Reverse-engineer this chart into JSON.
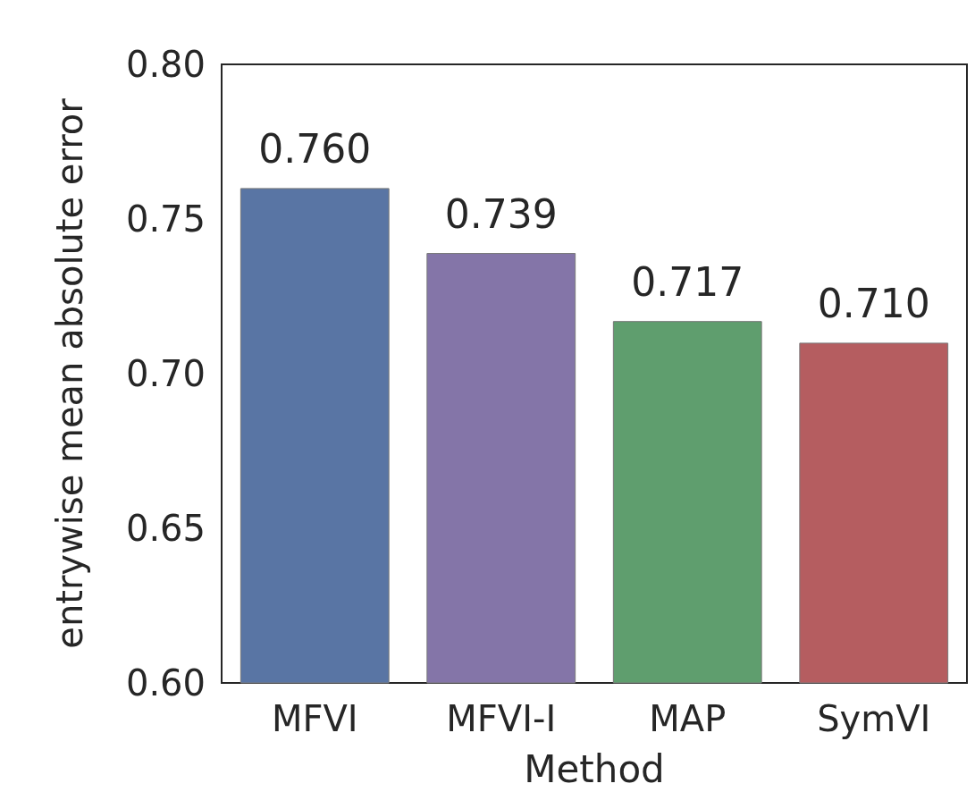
{
  "chart_data": {
    "type": "bar",
    "xlabel": "Method",
    "ylabel": "entrywise mean absolute error",
    "categories": [
      "MFVI",
      "MFVI-I",
      "MAP",
      "SymVI"
    ],
    "values": [
      0.76,
      0.739,
      0.717,
      0.71
    ],
    "colors": [
      "#5975a4",
      "#8475a8",
      "#5f9e6e",
      "#b55d60"
    ],
    "value_labels": [
      "0.760",
      "0.739",
      "0.717",
      "0.710"
    ],
    "ylim": [
      0.6,
      0.8
    ],
    "yticks": [
      {
        "value": 0.6,
        "label": "0.60"
      },
      {
        "value": 0.65,
        "label": "0.65"
      },
      {
        "value": 0.7,
        "label": "0.70"
      },
      {
        "value": 0.75,
        "label": "0.75"
      },
      {
        "value": 0.8,
        "label": "0.80"
      }
    ],
    "grid": false
  }
}
